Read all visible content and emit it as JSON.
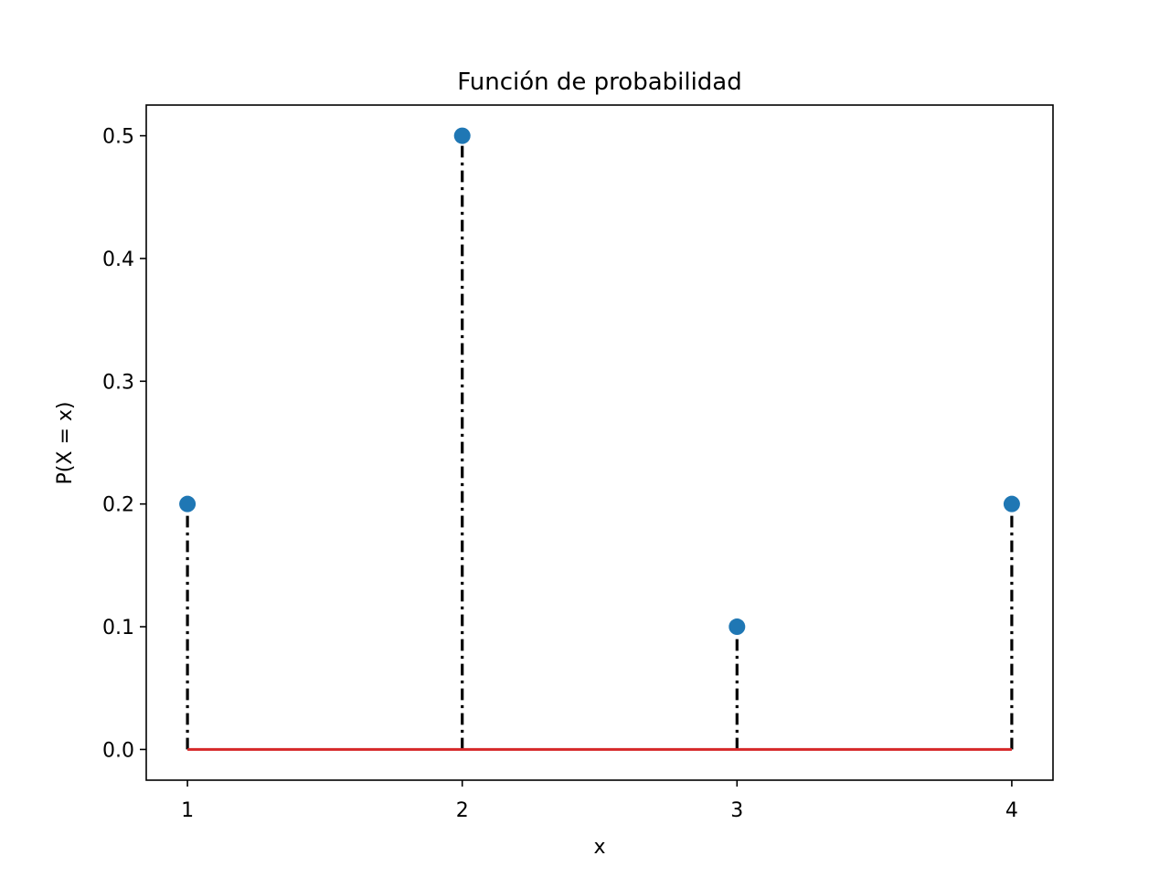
{
  "chart_data": {
    "type": "stem",
    "title": "Función de probabilidad",
    "xlabel": "x",
    "ylabel": "P(X = x)",
    "x": [
      1,
      2,
      3,
      4
    ],
    "values": [
      0.2,
      0.5,
      0.1,
      0.2
    ],
    "xlim": [
      0.85,
      4.15
    ],
    "ylim": [
      -0.025,
      0.525
    ],
    "xticks": [
      1,
      2,
      3,
      4
    ],
    "xtick_labels": [
      "1",
      "2",
      "3",
      "4"
    ],
    "yticks": [
      0.0,
      0.1,
      0.2,
      0.3,
      0.4,
      0.5
    ],
    "ytick_labels": [
      "0.0",
      "0.1",
      "0.2",
      "0.3",
      "0.4",
      "0.5"
    ],
    "grid": false,
    "stem_style": "dash-dot",
    "colors": {
      "marker": "#1f77b4",
      "stem": "#000000",
      "baseline": "#d62728"
    }
  }
}
